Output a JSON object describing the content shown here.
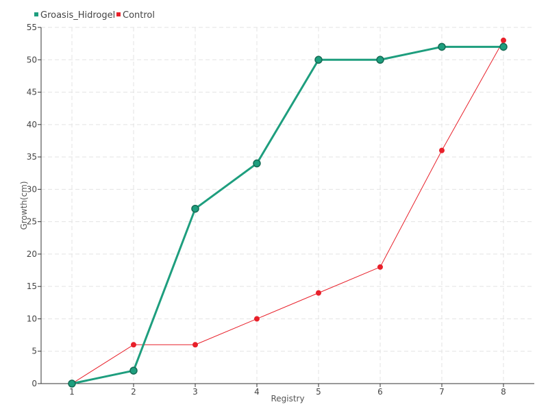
{
  "chart_data": {
    "type": "line",
    "xlabel": "Registry",
    "ylabel": "Growth(cm)",
    "x": [
      1,
      2,
      3,
      4,
      5,
      6,
      7,
      8
    ],
    "xlim": [
      0.5,
      8.5
    ],
    "ylim": [
      0,
      55
    ],
    "yticks": [
      0,
      5,
      10,
      15,
      20,
      25,
      30,
      35,
      40,
      45,
      50,
      55
    ],
    "grid": true,
    "legend_position": "top-left",
    "series": [
      {
        "name": "Groasis_Hidrogel",
        "color": "#1e9e7e",
        "values": [
          0,
          2,
          27,
          34,
          50,
          50,
          52,
          52
        ]
      },
      {
        "name": "Control",
        "color": "#e8202a",
        "values": [
          0,
          6,
          6,
          10,
          14,
          18,
          36,
          53
        ]
      }
    ]
  }
}
